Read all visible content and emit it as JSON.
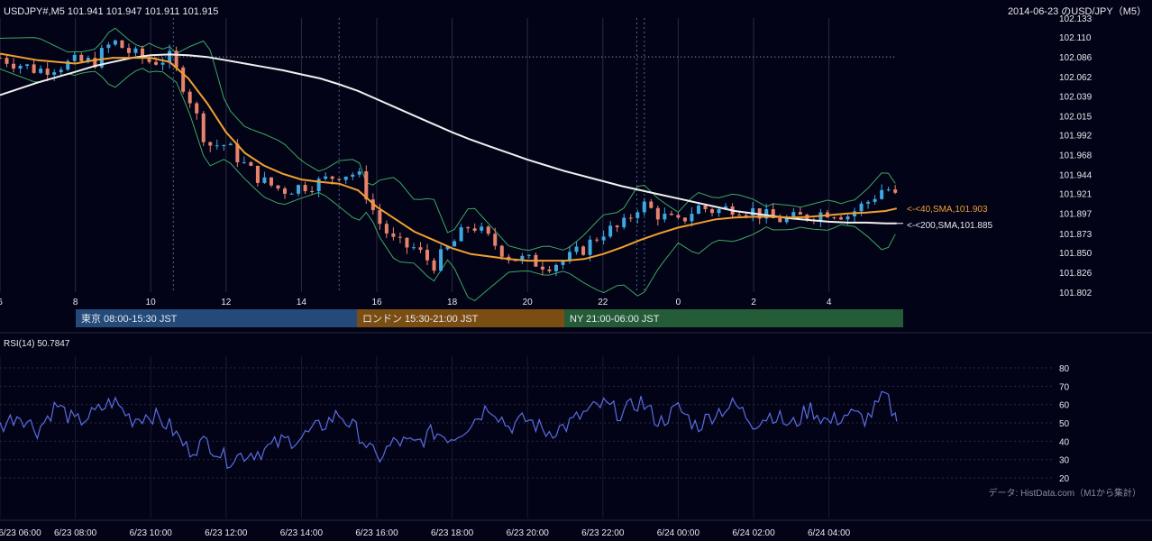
{
  "header": {
    "symbol_info": "USDJPY#,M5 101.941 101.947 101.911 101.915",
    "title_right": "2014-06-23 のUSD/JPY（M5）"
  },
  "sessions": [
    {
      "label": "東京 08:00-15:30 JST",
      "color": "#234a78"
    },
    {
      "label": "ロンドン 15:30-21:00 JST",
      "color": "#7a4d12"
    },
    {
      "label": "NY 21:00-06:00 JST",
      "color": "#255c38"
    }
  ],
  "rsi_panel": {
    "label": "RSI(14) 50.7847"
  },
  "source_note": "データ: HistData.com（M1から集計）",
  "colors": {
    "background": "#030318",
    "candle_up": "#3da9e0",
    "candle_down": "#e8836b",
    "sma40": "#f0a030",
    "sma200": "#f0f0f0",
    "bollinger": "#3aa860",
    "rsi": "#5a6de0"
  },
  "chart_data": [
    {
      "type": "candlestick",
      "title": "USDJPY#,M5",
      "y_ticks": [
        "102.133",
        "102.110",
        "102.086",
        "102.062",
        "102.039",
        "102.015",
        "101.992",
        "101.968",
        "101.944",
        "101.921",
        "101.897",
        "101.873",
        "101.850",
        "101.826",
        "101.802"
      ],
      "ylim": [
        101.802,
        102.133
      ],
      "x_ticks": [
        "6",
        "8",
        "10",
        "12",
        "14",
        "16",
        "18",
        "20",
        "22",
        "0",
        "2",
        "4"
      ],
      "last_price": {
        "open": 101.941,
        "high": 101.947,
        "low": 101.911,
        "close": 101.915
      },
      "indicators": [
        {
          "name": "SMA 40",
          "label": "<-<40,SMA,101.903",
          "value": 101.903
        },
        {
          "name": "SMA 200",
          "label": "<-<200,SMA,101.885",
          "value": 101.885
        },
        {
          "name": "Bollinger Bands"
        }
      ],
      "close_path_hours": [
        6.0,
        7.0,
        8.0,
        8.5,
        9.0,
        9.5,
        10.0,
        10.5,
        11.0,
        11.5,
        12.0,
        12.5,
        13.0,
        13.5,
        14.0,
        14.5,
        15.0,
        15.5,
        16.0,
        16.5,
        17.0,
        17.5,
        18.0,
        18.5,
        19.0,
        19.5,
        20.0,
        20.5,
        21.0,
        21.5,
        22.0,
        22.5,
        23.0,
        23.5,
        24.0,
        24.5,
        25.0,
        25.5,
        26.0,
        26.5,
        27.0,
        27.5,
        28.0,
        28.5,
        29.0,
        29.5,
        29.8
      ],
      "close_path_values": [
        102.085,
        102.07,
        102.08,
        102.08,
        102.105,
        102.09,
        102.08,
        102.085,
        102.04,
        101.98,
        101.98,
        101.955,
        101.935,
        101.925,
        101.93,
        101.935,
        101.945,
        101.945,
        101.89,
        101.86,
        101.855,
        101.835,
        101.86,
        101.885,
        101.865,
        101.845,
        101.84,
        101.835,
        101.84,
        101.855,
        101.875,
        101.88,
        101.91,
        101.895,
        101.885,
        101.905,
        101.9,
        101.905,
        101.9,
        101.89,
        101.89,
        101.895,
        101.9,
        101.895,
        101.91,
        101.93,
        101.915
      ],
      "sma40_values": [
        102.09,
        102.082,
        102.078,
        102.082,
        102.085,
        102.085,
        102.085,
        102.08,
        102.06,
        102.03,
        101.995,
        101.97,
        101.955,
        101.945,
        101.938,
        101.935,
        101.933,
        101.925,
        101.905,
        101.89,
        101.875,
        101.865,
        101.855,
        101.848,
        101.845,
        101.842,
        101.84,
        101.84,
        101.84,
        101.842,
        101.848,
        101.856,
        101.865,
        101.873,
        101.88,
        101.885,
        101.89,
        101.892,
        101.893,
        101.893,
        101.892,
        101.893,
        101.895,
        101.897,
        101.898,
        101.9,
        101.903
      ],
      "sma200_values": [
        102.04,
        102.055,
        102.068,
        102.075,
        102.08,
        102.085,
        102.088,
        102.089,
        102.088,
        102.086,
        102.082,
        102.078,
        102.074,
        102.07,
        102.065,
        102.06,
        102.053,
        102.045,
        102.035,
        102.025,
        102.015,
        102.005,
        101.995,
        101.986,
        101.978,
        101.97,
        101.962,
        101.955,
        101.948,
        101.942,
        101.936,
        101.93,
        101.925,
        101.92,
        101.915,
        101.91,
        101.905,
        101.9,
        101.897,
        101.894,
        101.891,
        101.889,
        101.887,
        101.886,
        101.886,
        101.885,
        101.885
      ]
    },
    {
      "type": "line",
      "title": "RSI(14)",
      "y_ticks": [
        "80",
        "70",
        "60",
        "50",
        "40",
        "30",
        "20"
      ],
      "ylim": [
        20,
        80
      ],
      "last_value": 50.7847,
      "x_ticks": [
        "6/23 06:00",
        "6/23 08:00",
        "6/23 10:00",
        "6/23 12:00",
        "6/23 14:00",
        "6/23 16:00",
        "6/23 18:00",
        "6/23 20:00",
        "6/23 22:00",
        "6/24 00:00",
        "6/24 02:00",
        "6/24 04:00"
      ],
      "path_hours": [
        6.0,
        6.5,
        7.0,
        7.5,
        8.0,
        8.5,
        9.0,
        9.5,
        10.0,
        10.5,
        11.0,
        11.5,
        12.0,
        12.5,
        13.0,
        13.5,
        14.0,
        14.5,
        15.0,
        15.5,
        16.0,
        16.5,
        17.0,
        17.5,
        18.0,
        18.5,
        19.0,
        19.5,
        20.0,
        20.5,
        21.0,
        21.5,
        22.0,
        22.5,
        23.0,
        23.5,
        24.0,
        24.5,
        25.0,
        25.5,
        26.0,
        26.5,
        27.0,
        27.5,
        28.0,
        28.5,
        29.0,
        29.5,
        29.8
      ],
      "values": [
        48,
        55,
        46,
        60,
        50,
        55,
        62,
        52,
        55,
        48,
        35,
        40,
        30,
        33,
        35,
        40,
        42,
        48,
        55,
        45,
        30,
        40,
        38,
        45,
        42,
        50,
        60,
        48,
        52,
        45,
        48,
        55,
        60,
        55,
        62,
        50,
        58,
        48,
        56,
        60,
        50,
        55,
        48,
        58,
        50,
        55,
        52,
        65,
        51
      ]
    }
  ]
}
